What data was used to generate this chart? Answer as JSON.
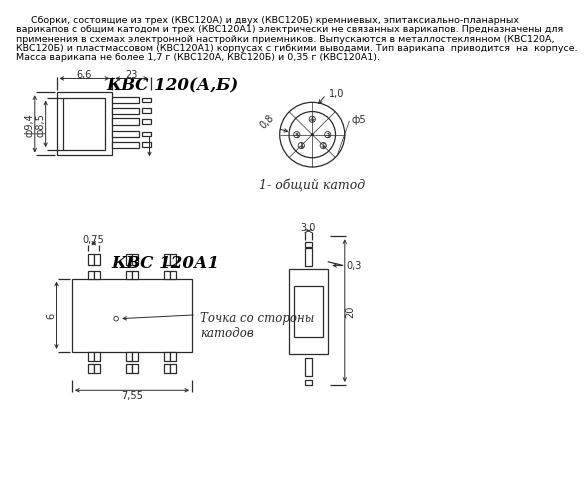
{
  "bg_color": "#ffffff",
  "text_color": "#000000",
  "line_color": "#2a2a2a",
  "title1": "КВС 120(А,Б)",
  "title2": "КВС 120А1",
  "description_lines": [
    "     Сборки, состоящие из трех (КВС120А) и двух (КВС120Б) кремниевых, эпитаксиально-планарных",
    "варикапов с общим катодом и трех (КВС120А1) электрически не связанных варикапов. Предназначены для",
    "применения в схемах электронной настройки приемников. Выпускаются в металлостеклянном (КВС120А,",
    "КВС120Б) и пластмассовом (КВС120А1) корпусах с гибкими выводами. Тип варикапа  приводится  на  корпусе.",
    "Масса варикапа не более 1,7 г (КВС120А, КВС120Б) и 0,35 г (КВС120А1)."
  ],
  "note_cathode": "1- общий катод",
  "note_dot": "Точка со стороны\nкатодов",
  "dim_66": "6,6",
  "dim_23": "23",
  "dim_d94": "ф9,4",
  "dim_d85": "ф8,5",
  "dim_10": "1,0",
  "dim_08": "0,8",
  "dim_d5": "ф5",
  "dim_075": "0,75",
  "dim_6": "6",
  "dim_755": "7,55",
  "dim_30": "3,0",
  "dim_03": "0,3",
  "dim_20": "20"
}
